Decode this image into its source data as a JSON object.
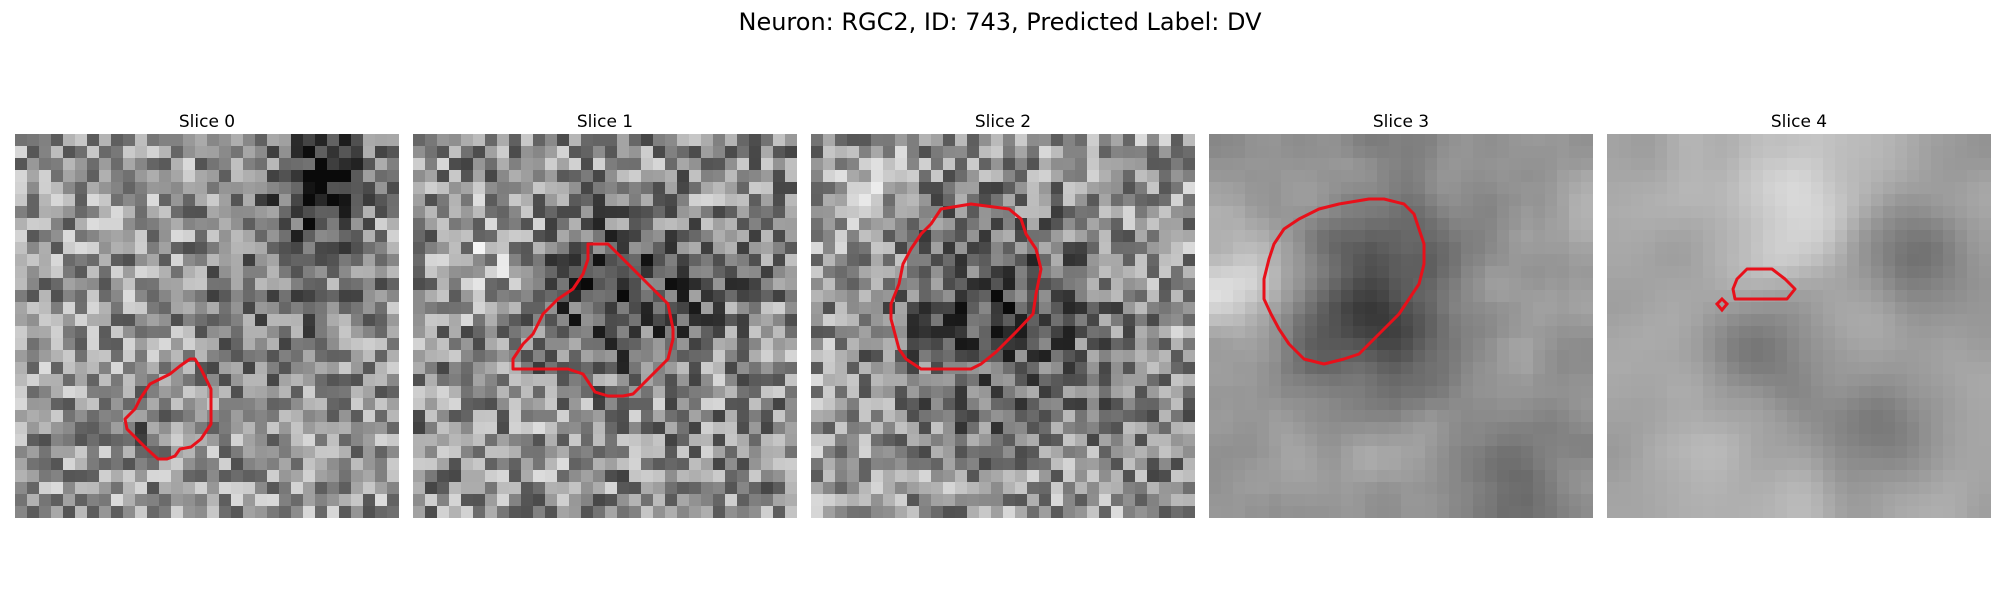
{
  "figure": {
    "title": "Neuron: RGC2, ID: 743, Predicted Label: DV"
  },
  "outline_color": "#e8101a",
  "panels": [
    {
      "title": "Slice 0"
    },
    {
      "title": "Slice 1"
    },
    {
      "title": "Slice 2"
    },
    {
      "title": "Slice 3"
    },
    {
      "title": "Slice 4"
    }
  ]
}
